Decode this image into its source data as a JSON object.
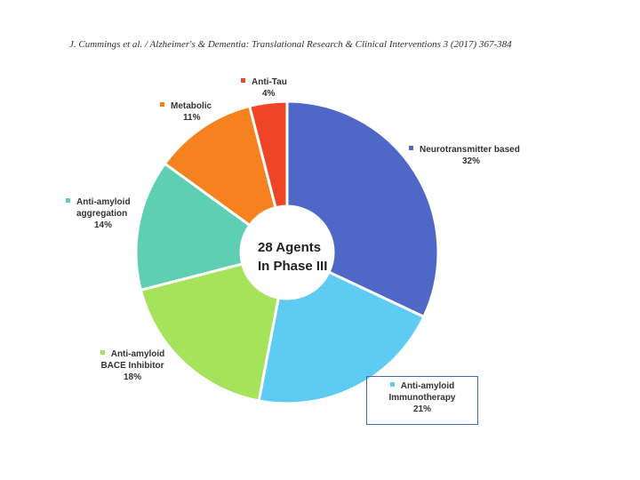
{
  "citation": "J. Cummings et al. / Alzheimer's & Dementia: Translational Research & Clinical Interventions 3 (2017) 367-384",
  "chart_data": {
    "type": "pie",
    "center_text": [
      "28 Agents",
      "In Phase III"
    ],
    "slices": [
      {
        "name": "Neurotransmitter based",
        "value": 32,
        "pct_label": "32%",
        "color": "#4f67c6"
      },
      {
        "name": "Anti-amyloid Immunotherapy",
        "name_lines": [
          "Anti-amyloid",
          "Immunotherapy"
        ],
        "value": 21,
        "pct_label": "21%",
        "color": "#5ecbf2"
      },
      {
        "name": "Anti-amyloid BACE Inhibitor",
        "name_lines": [
          "Anti-amyloid",
          "BACE Inhibitor"
        ],
        "value": 18,
        "pct_label": "18%",
        "color": "#a4e35a"
      },
      {
        "name": "Anti-amyloid aggregation",
        "name_lines": [
          "Anti-amyloid",
          "aggregation"
        ],
        "value": 14,
        "pct_label": "14%",
        "color": "#5ecfb2"
      },
      {
        "name": "Metabolic",
        "value": 11,
        "pct_label": "11%",
        "color": "#f5821f"
      },
      {
        "name": "Anti-Tau",
        "value": 4,
        "pct_label": "4%",
        "color": "#ee4527"
      }
    ],
    "legend_placement": "labels around the pie"
  }
}
